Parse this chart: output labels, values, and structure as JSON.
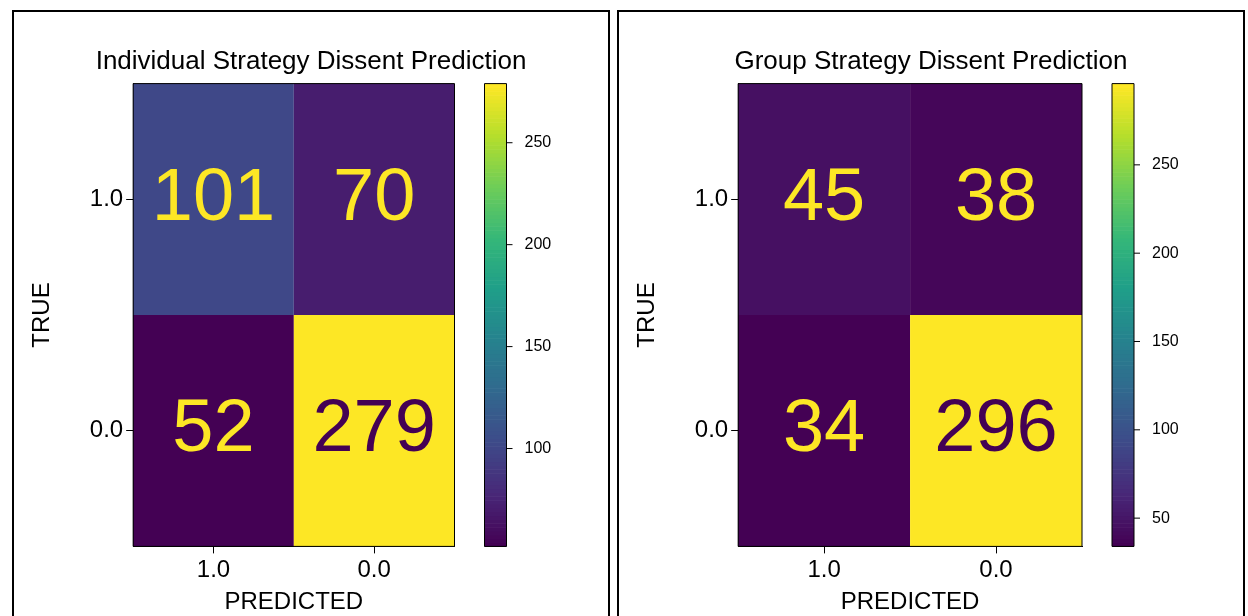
{
  "chart_data": [
    {
      "type": "heatmap",
      "title": "Individual Strategy Dissent Prediction",
      "xlabel": "PREDICTED",
      "ylabel": "TRUE",
      "categories": [
        "1.0",
        "0.0"
      ],
      "y_categories": [
        "1.0",
        "0.0"
      ],
      "cells": [
        [
          101,
          70
        ],
        [
          52,
          279
        ]
      ],
      "data_labels": true,
      "clim": [
        52,
        279
      ],
      "cticks": [
        100,
        150,
        200,
        250
      ]
    },
    {
      "type": "heatmap",
      "title": "Group Strategy Dissent Prediction",
      "xlabel": "PREDICTED",
      "ylabel": "TRUE",
      "categories": [
        "1.0",
        "0.0"
      ],
      "y_categories": [
        "1.0",
        "0.0"
      ],
      "cells": [
        [
          45,
          38
        ],
        [
          34,
          296
        ]
      ],
      "data_labels": true,
      "clim": [
        34,
        296
      ],
      "cticks": [
        50,
        100,
        150,
        200,
        250
      ]
    }
  ]
}
